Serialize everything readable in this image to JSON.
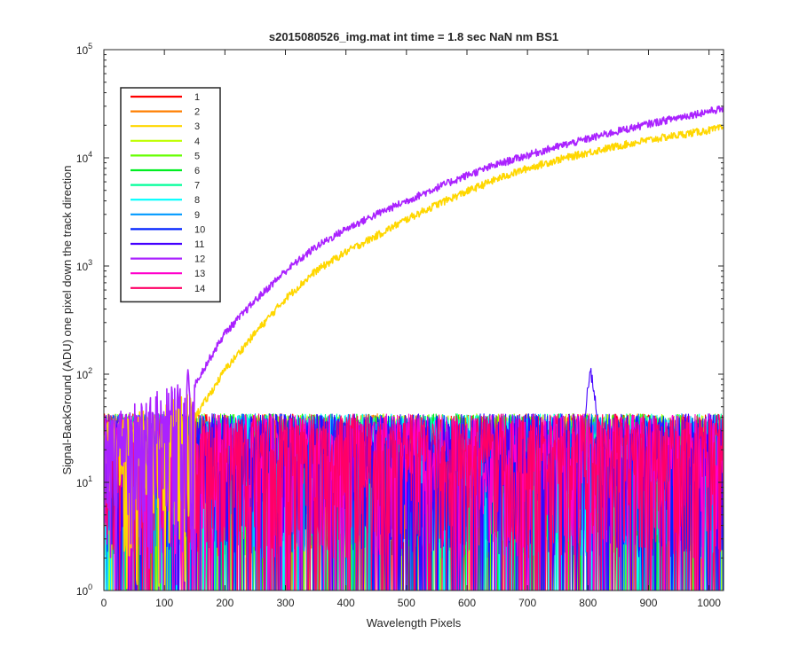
{
  "chart_data": {
    "type": "line",
    "title": "s2015080526_img.mat int time = 1.8 sec  NaN nm BS1",
    "xlabel": "Wavelength Pixels",
    "ylabel": "Signal-BackGround (ADU) one pixel down the track direction",
    "xlim": [
      0,
      1024
    ],
    "ylim": [
      1,
      100000
    ],
    "yscale": "log",
    "xticks": [
      0,
      100,
      200,
      300,
      400,
      500,
      600,
      700,
      800,
      900,
      1000
    ],
    "yticks": [
      {
        "value": 1,
        "base": "10",
        "exp": "0"
      },
      {
        "value": 10,
        "base": "10",
        "exp": "1"
      },
      {
        "value": 100,
        "base": "10",
        "exp": "2"
      },
      {
        "value": 1000,
        "base": "10",
        "exp": "3"
      },
      {
        "value": 10000,
        "base": "10",
        "exp": "4"
      },
      {
        "value": 100000,
        "base": "10",
        "exp": "5"
      }
    ],
    "grid": false,
    "legend_position": "top-left",
    "noise_floor": {
      "typical_range": [
        1,
        45
      ],
      "note_series": "1-11,13,14"
    },
    "series": [
      {
        "name": "1",
        "color": "#ff0000",
        "kind": "noise",
        "level": 15
      },
      {
        "name": "2",
        "color": "#ff7f00",
        "kind": "noise",
        "level": 15
      },
      {
        "name": "3",
        "color": "#ffd700",
        "kind": "signal",
        "x": [
          0,
          150,
          175,
          200,
          250,
          300,
          350,
          400,
          450,
          500,
          550,
          600,
          650,
          700,
          750,
          800,
          850,
          900,
          950,
          1000,
          1024
        ],
        "y": [
          20,
          40,
          65,
          110,
          240,
          500,
          900,
          1350,
          1900,
          2700,
          3700,
          4900,
          6400,
          8000,
          9600,
          11200,
          12900,
          14600,
          16300,
          18000,
          19000
        ]
      },
      {
        "name": "4",
        "color": "#bfff00",
        "kind": "noise",
        "level": 15
      },
      {
        "name": "5",
        "color": "#66ff00",
        "kind": "noise",
        "level": 15
      },
      {
        "name": "6",
        "color": "#00ee22",
        "kind": "noise",
        "level": 15
      },
      {
        "name": "7",
        "color": "#00ff99",
        "kind": "noise",
        "level": 15
      },
      {
        "name": "8",
        "color": "#00ffff",
        "kind": "noise",
        "level": 15
      },
      {
        "name": "9",
        "color": "#0099ff",
        "kind": "noise",
        "level": 15
      },
      {
        "name": "10",
        "color": "#0022ff",
        "kind": "noise",
        "level": 15
      },
      {
        "name": "11",
        "color": "#4400ff",
        "kind": "noise",
        "level": 15,
        "peak": {
          "x": 805,
          "y": 110
        }
      },
      {
        "name": "12",
        "color": "#aa22ff",
        "kind": "signal",
        "x": [
          0,
          130,
          150,
          175,
          200,
          250,
          300,
          350,
          400,
          450,
          500,
          550,
          600,
          650,
          700,
          750,
          800,
          850,
          900,
          950,
          1000,
          1024
        ],
        "y": [
          22,
          50,
          80,
          140,
          240,
          480,
          900,
          1500,
          2200,
          3000,
          4000,
          5300,
          6900,
          8700,
          10600,
          12700,
          15000,
          17700,
          20600,
          23700,
          27000,
          28500
        ]
      },
      {
        "name": "13",
        "color": "#ff00cc",
        "kind": "noise",
        "level": 15
      },
      {
        "name": "14",
        "color": "#ff0066",
        "kind": "noise",
        "level": 15
      }
    ]
  }
}
